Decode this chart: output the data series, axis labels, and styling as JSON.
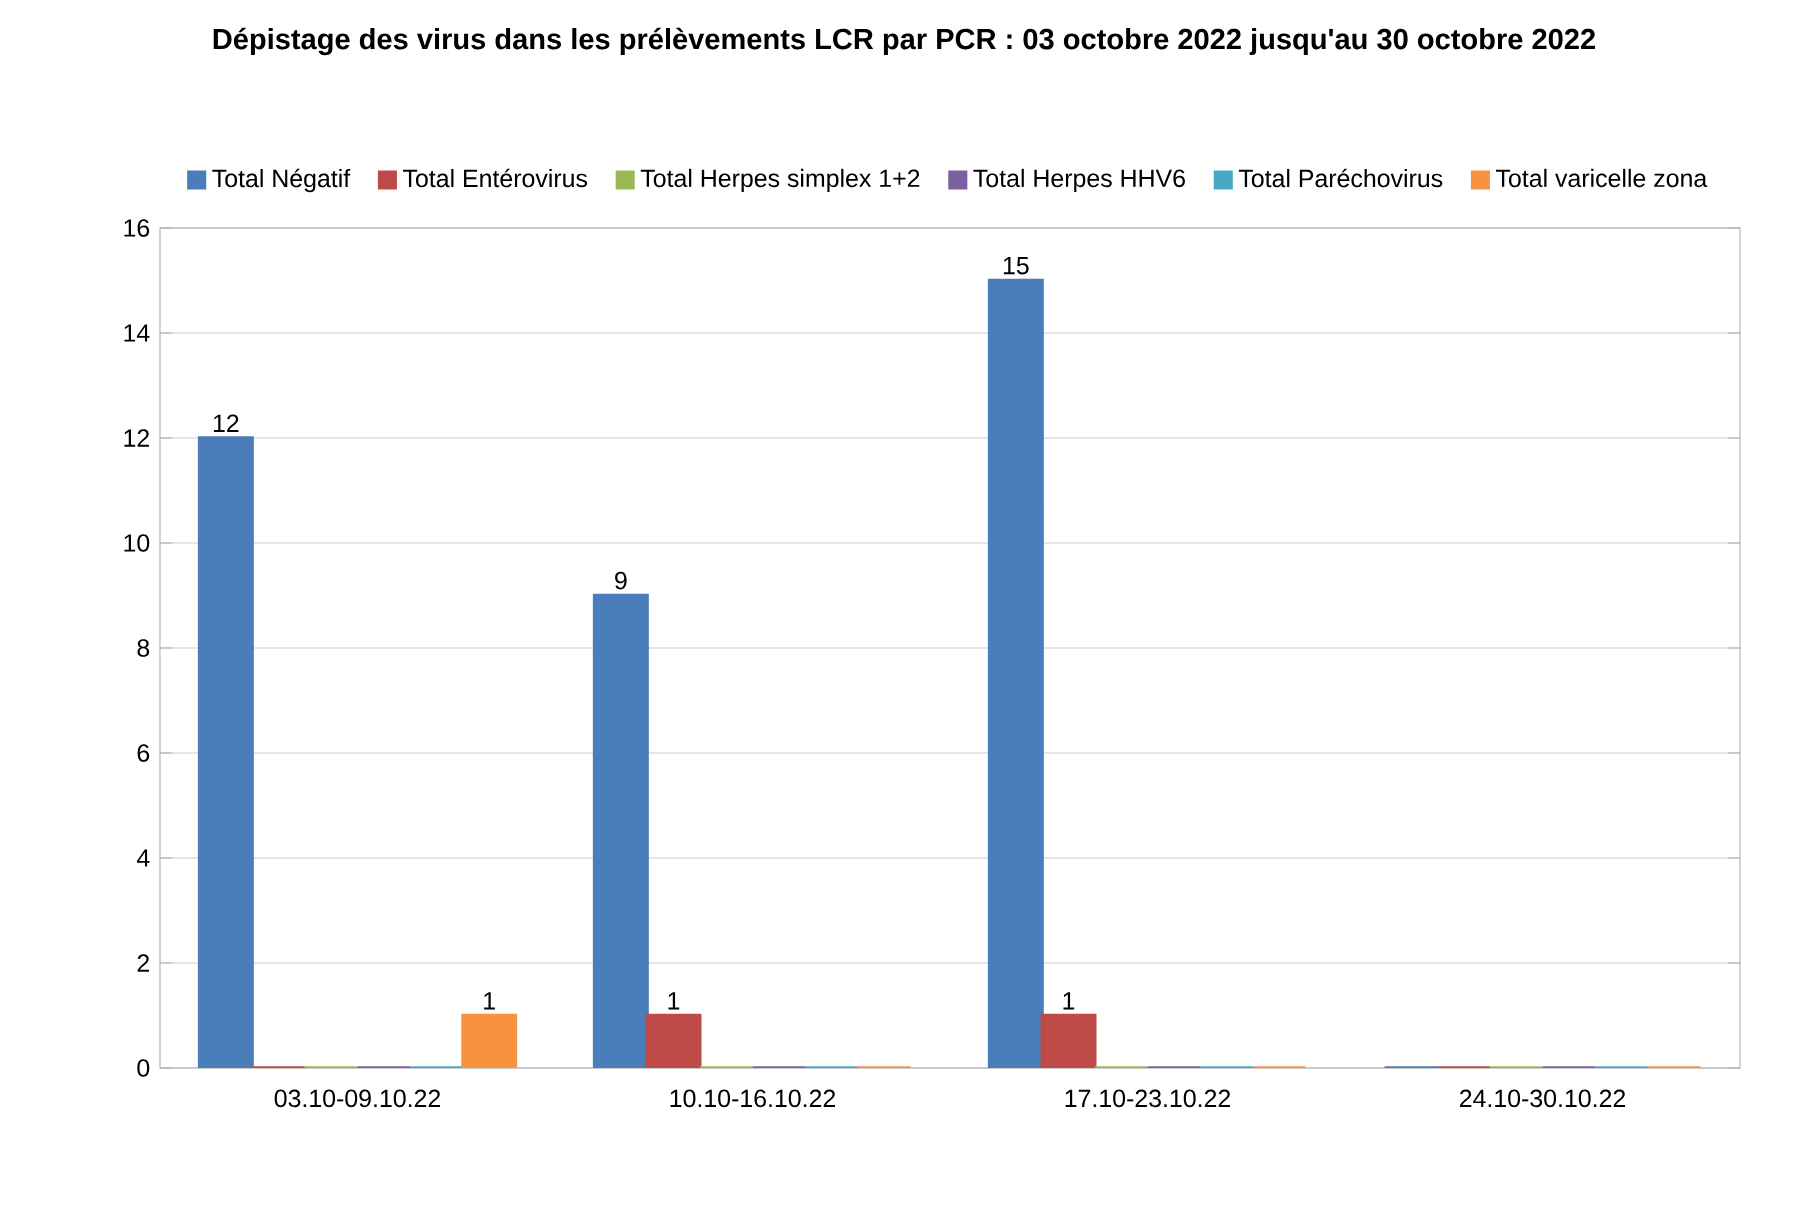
{
  "chart_data": {
    "type": "bar",
    "title": "Dépistage des virus dans les prélèvements LCR par PCR : 03 octobre 2022 jusqu'au  30 octobre 2022",
    "categories": [
      "03.10-09.10.22",
      "10.10-16.10.22",
      "17.10-23.10.22",
      "24.10-30.10.22"
    ],
    "series": [
      {
        "name": "Total Négatif",
        "color": "#4a7ebb",
        "values": [
          12,
          9,
          15,
          0
        ],
        "value_labels": [
          "12",
          "9",
          "15",
          null
        ]
      },
      {
        "name": "Total Entérovirus",
        "color": "#be4b48",
        "values": [
          0,
          1,
          1,
          0
        ],
        "value_labels": [
          null,
          "1",
          "1",
          null
        ]
      },
      {
        "name": "Total Herpes simplex 1+2",
        "color": "#98b954",
        "values": [
          0,
          0,
          0,
          0
        ],
        "value_labels": [
          null,
          null,
          null,
          null
        ]
      },
      {
        "name": "Total Herpes HHV6",
        "color": "#7d60a0",
        "values": [
          0,
          0,
          0,
          0
        ],
        "value_labels": [
          null,
          null,
          null,
          null
        ]
      },
      {
        "name": "Total Paréchovirus",
        "color": "#46aac5",
        "values": [
          0,
          0,
          0,
          0
        ],
        "value_labels": [
          null,
          null,
          null,
          null
        ]
      },
      {
        "name": "Total varicelle zona",
        "color": "#f69240",
        "values": [
          1,
          0,
          0,
          0
        ],
        "value_labels": [
          "1",
          null,
          null,
          null
        ]
      }
    ],
    "ylim": [
      0,
      16
    ],
    "yticks": [
      0,
      2,
      4,
      6,
      8,
      10,
      12,
      14,
      16
    ],
    "grid": "y",
    "legend": "top"
  }
}
